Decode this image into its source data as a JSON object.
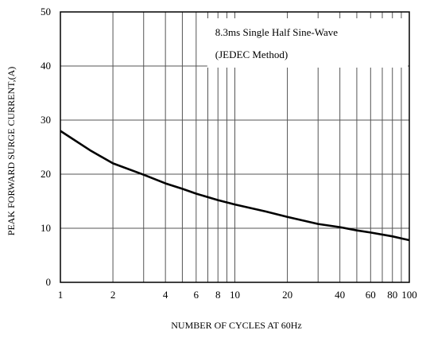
{
  "chart_data": {
    "type": "line",
    "title": "",
    "xlabel": "NUMBER OF CYCLES AT 60Hz",
    "ylabel": "PEAK FORWARD SURGE CURRENT,(A)",
    "x_scale": "log",
    "xlim": [
      1,
      100
    ],
    "ylim": [
      0,
      50
    ],
    "x_ticks": [
      1,
      2,
      4,
      6,
      8,
      10,
      20,
      40,
      60,
      80,
      100
    ],
    "x_tick_labels": [
      "1",
      "2",
      "4",
      "6",
      "8",
      "10",
      "20",
      "40",
      "60",
      "80",
      "100"
    ],
    "y_ticks": [
      0,
      10,
      20,
      30,
      40,
      50
    ],
    "y_tick_labels": [
      "0",
      "10",
      "20",
      "30",
      "40",
      "50"
    ],
    "x_gridlines": [
      1,
      2,
      3,
      4,
      5,
      6,
      7,
      8,
      9,
      10,
      20,
      30,
      40,
      50,
      60,
      70,
      80,
      90,
      100
    ],
    "y_gridlines": [
      0,
      10,
      20,
      30,
      40,
      50
    ],
    "grid": true,
    "annotation": {
      "lines": [
        "8.3ms Single Half Sine-Wave",
        "(JEDEC Method)"
      ],
      "placement": "top-right"
    },
    "series": [
      {
        "x": [
          1,
          1.5,
          2,
          3,
          4,
          5,
          6,
          8,
          10,
          15,
          20,
          30,
          40,
          50,
          60,
          80,
          100
        ],
        "y": [
          28,
          24.3,
          22,
          19.9,
          18.3,
          17.3,
          16.4,
          15.2,
          14.4,
          13.1,
          12.1,
          10.8,
          10.2,
          9.6,
          9.2,
          8.5,
          7.8
        ]
      }
    ]
  }
}
